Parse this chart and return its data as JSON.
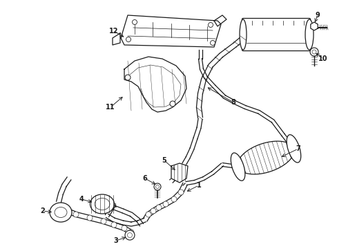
{
  "background_color": "#ffffff",
  "line_color": "#1a1a1a",
  "label_color": "#000000",
  "fig_width": 4.89,
  "fig_height": 3.6,
  "dpi": 100,
  "label_fs": 7.0
}
